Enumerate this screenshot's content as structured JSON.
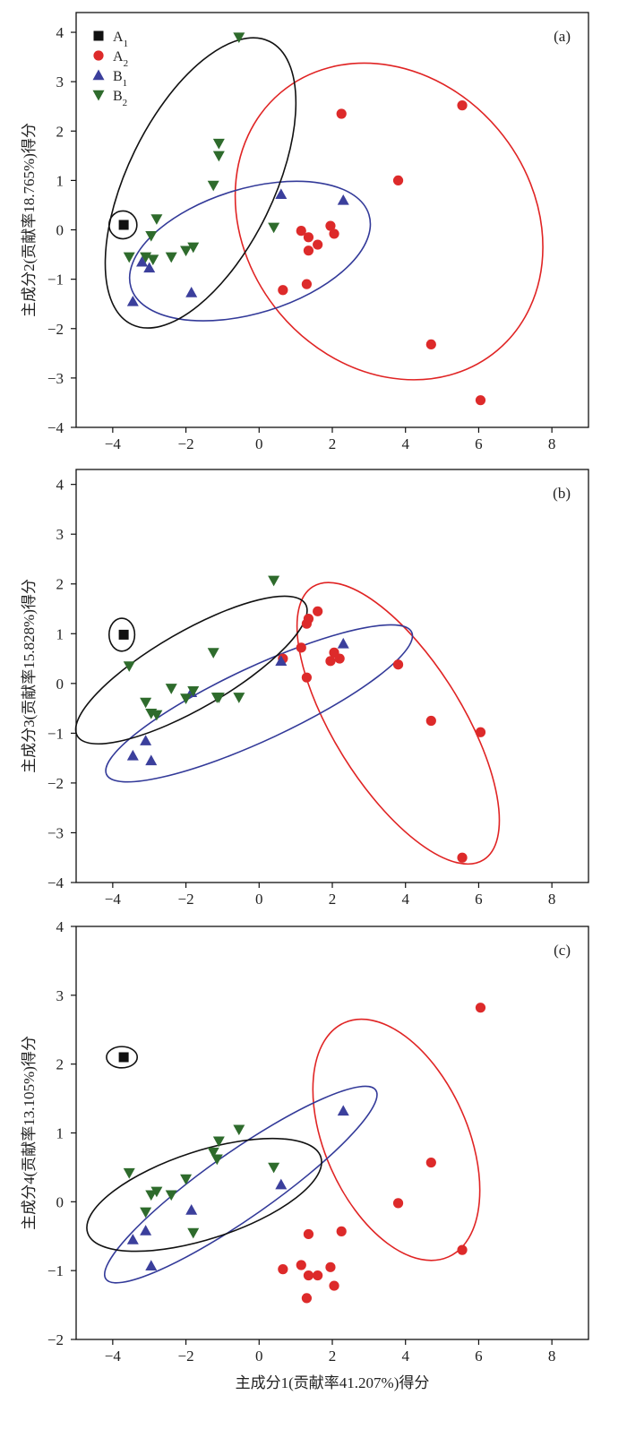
{
  "chart_data": [
    {
      "type": "scatter",
      "panel_label": "(a)",
      "xlabel": "",
      "ylabel": "主成分2(贡献率18.765%)得分",
      "xlim": [
        -5,
        9
      ],
      "ylim": [
        -4,
        4.4
      ],
      "xticks": [
        -4,
        -2,
        0,
        2,
        4,
        6,
        8
      ],
      "yticks": [
        -4,
        -3,
        -2,
        -1,
        0,
        1,
        2,
        3,
        4
      ],
      "legend": "top-left",
      "series": [
        {
          "name": "A1",
          "marker": "square",
          "color": "#111111",
          "points": [
            [
              -3.7,
              0.1
            ]
          ]
        },
        {
          "name": "A2",
          "marker": "circle",
          "color": "#dd2a2a",
          "points": [
            [
              2.25,
              2.35
            ],
            [
              5.55,
              2.52
            ],
            [
              3.8,
              1.0
            ],
            [
              1.15,
              -0.02
            ],
            [
              1.95,
              0.08
            ],
            [
              2.05,
              -0.08
            ],
            [
              1.35,
              -0.15
            ],
            [
              1.6,
              -0.3
            ],
            [
              1.35,
              -0.42
            ],
            [
              1.3,
              -1.1
            ],
            [
              0.65,
              -1.22
            ],
            [
              4.7,
              -2.32
            ],
            [
              6.05,
              -3.45
            ]
          ]
        },
        {
          "name": "B1",
          "marker": "triangle-up",
          "color": "#3b3f9c",
          "points": [
            [
              0.6,
              0.72
            ],
            [
              2.3,
              0.6
            ],
            [
              -3.2,
              -0.65
            ],
            [
              -3.0,
              -0.77
            ],
            [
              -1.85,
              -1.27
            ],
            [
              -3.45,
              -1.45
            ]
          ]
        },
        {
          "name": "B2",
          "marker": "triangle-down",
          "color": "#2e6b2c",
          "points": [
            [
              -0.55,
              3.9
            ],
            [
              -1.1,
              1.75
            ],
            [
              -1.1,
              1.5
            ],
            [
              -1.25,
              0.9
            ],
            [
              -2.8,
              0.22
            ],
            [
              -2.95,
              -0.12
            ],
            [
              0.4,
              0.05
            ],
            [
              -3.55,
              -0.55
            ],
            [
              -3.1,
              -0.55
            ],
            [
              -2.9,
              -0.6
            ],
            [
              -2.4,
              -0.55
            ],
            [
              -1.8,
              -0.35
            ],
            [
              -2.0,
              -0.42
            ]
          ]
        }
      ],
      "ellipses": [
        {
          "group": "A1",
          "color": "#111111",
          "cx": -3.72,
          "cy": 0.1,
          "rx": 0.38,
          "ry": 0.38,
          "angle": 90
        },
        {
          "group": "A2",
          "color": "#e02424",
          "cx": 3.55,
          "cy": 0.17,
          "rx": 4.6,
          "ry": 3.9,
          "angle": 130
        },
        {
          "group": "B1",
          "color": "#333a99",
          "cx": -0.25,
          "cy": -0.43,
          "rx": 3.4,
          "ry": 1.7,
          "angle": 17
        },
        {
          "group": "B2",
          "color": "#111111",
          "cx": -1.6,
          "cy": 0.95,
          "rx": 4.3,
          "ry": 2.0,
          "angle": 64
        }
      ]
    },
    {
      "type": "scatter",
      "panel_label": "(b)",
      "xlabel": "",
      "ylabel": "主成分3(贡献率15.828%)得分",
      "xlim": [
        -5,
        9
      ],
      "ylim": [
        -4,
        4.3
      ],
      "xticks": [
        -4,
        -2,
        0,
        2,
        4,
        6,
        8
      ],
      "yticks": [
        -4,
        -3,
        -2,
        -1,
        0,
        1,
        2,
        3,
        4
      ],
      "legend": "none",
      "series": [
        {
          "name": "A1",
          "marker": "square",
          "color": "#111111",
          "points": [
            [
              -3.7,
              0.98
            ]
          ]
        },
        {
          "name": "A2",
          "marker": "circle",
          "color": "#dd2a2a",
          "points": [
            [
              1.6,
              1.45
            ],
            [
              1.35,
              1.3
            ],
            [
              1.3,
              1.2
            ],
            [
              0.65,
              0.5
            ],
            [
              1.15,
              0.72
            ],
            [
              2.05,
              0.62
            ],
            [
              2.2,
              0.5
            ],
            [
              1.95,
              0.45
            ],
            [
              1.3,
              0.12
            ],
            [
              3.8,
              0.38
            ],
            [
              4.7,
              -0.75
            ],
            [
              6.05,
              -0.98
            ],
            [
              5.55,
              -3.5
            ]
          ]
        },
        {
          "name": "B1",
          "marker": "triangle-up",
          "color": "#3b3f9c",
          "points": [
            [
              2.3,
              0.8
            ],
            [
              0.6,
              0.45
            ],
            [
              -3.1,
              -1.15
            ],
            [
              -3.45,
              -1.45
            ],
            [
              -2.95,
              -1.55
            ],
            [
              -1.85,
              -0.18
            ]
          ]
        },
        {
          "name": "B2",
          "marker": "triangle-down",
          "color": "#2e6b2c",
          "points": [
            [
              0.4,
              2.07
            ],
            [
              -3.55,
              0.35
            ],
            [
              -1.25,
              0.62
            ],
            [
              -2.4,
              -0.1
            ],
            [
              -2.0,
              -0.3
            ],
            [
              -1.8,
              -0.15
            ],
            [
              -1.1,
              -0.28
            ],
            [
              -1.15,
              -0.28
            ],
            [
              -0.55,
              -0.28
            ],
            [
              -3.1,
              -0.38
            ],
            [
              -2.95,
              -0.6
            ],
            [
              -2.8,
              -0.63
            ]
          ]
        }
      ],
      "ellipses": [
        {
          "group": "A1",
          "color": "#111111",
          "cx": -3.75,
          "cy": 0.98,
          "rx": 0.45,
          "ry": 0.35,
          "angle": 90
        },
        {
          "group": "A2",
          "color": "#e02424",
          "cx": 3.8,
          "cy": -0.8,
          "rx": 4.4,
          "ry": 1.75,
          "angle": -58
        },
        {
          "group": "B1",
          "color": "#333a99",
          "cx": 0.0,
          "cy": -0.4,
          "rx": 4.6,
          "ry": 1.0,
          "angle": 25
        },
        {
          "group": "B2",
          "color": "#111111",
          "cx": -1.85,
          "cy": 0.27,
          "rx": 3.6,
          "ry": 1.05,
          "angle": 30
        }
      ]
    },
    {
      "type": "scatter",
      "panel_label": "(c)",
      "xlabel": "主成分1(贡献率41.207%)得分",
      "ylabel": "主成分4(贡献率13.105%)得分",
      "xlim": [
        -5,
        9
      ],
      "ylim": [
        -2,
        4
      ],
      "xticks": [
        -4,
        -2,
        0,
        2,
        4,
        6,
        8
      ],
      "yticks": [
        -2,
        -1,
        0,
        1,
        2,
        3,
        4
      ],
      "legend": "none",
      "series": [
        {
          "name": "A1",
          "marker": "square",
          "color": "#111111",
          "points": [
            [
              -3.7,
              2.1
            ]
          ]
        },
        {
          "name": "A2",
          "marker": "circle",
          "color": "#dd2a2a",
          "points": [
            [
              6.05,
              2.82
            ],
            [
              4.7,
              0.57
            ],
            [
              3.8,
              -0.02
            ],
            [
              2.25,
              -0.43
            ],
            [
              5.55,
              -0.7
            ],
            [
              1.35,
              -0.47
            ],
            [
              1.15,
              -0.92
            ],
            [
              0.65,
              -0.98
            ],
            [
              1.95,
              -0.95
            ],
            [
              1.35,
              -1.07
            ],
            [
              1.6,
              -1.07
            ],
            [
              2.05,
              -1.22
            ],
            [
              1.3,
              -1.4
            ]
          ]
        },
        {
          "name": "B1",
          "marker": "triangle-up",
          "color": "#3b3f9c",
          "points": [
            [
              2.3,
              1.32
            ],
            [
              0.6,
              0.25
            ],
            [
              -1.85,
              -0.12
            ],
            [
              -3.1,
              -0.42
            ],
            [
              -3.45,
              -0.55
            ],
            [
              -2.95,
              -0.93
            ]
          ]
        },
        {
          "name": "B2",
          "marker": "triangle-down",
          "color": "#2e6b2c",
          "points": [
            [
              -0.55,
              1.05
            ],
            [
              -1.1,
              0.88
            ],
            [
              -1.25,
              0.72
            ],
            [
              -1.15,
              0.62
            ],
            [
              0.4,
              0.5
            ],
            [
              -3.55,
              0.42
            ],
            [
              -2.0,
              0.33
            ],
            [
              -2.8,
              0.15
            ],
            [
              -2.95,
              0.1
            ],
            [
              -2.4,
              0.1
            ],
            [
              -3.1,
              -0.15
            ],
            [
              -1.8,
              -0.45
            ]
          ]
        }
      ],
      "ellipses": [
        {
          "group": "A1",
          "color": "#111111",
          "cx": -3.75,
          "cy": 2.1,
          "rx": 0.42,
          "ry": 0.29,
          "angle": 0
        },
        {
          "group": "A2",
          "color": "#e02424",
          "cx": 3.75,
          "cy": 0.9,
          "rx": 3.5,
          "ry": 1.95,
          "angle": -66
        },
        {
          "group": "B1",
          "color": "#333a99",
          "cx": -0.5,
          "cy": 0.25,
          "rx": 4.5,
          "ry": 0.9,
          "angle": 35
        },
        {
          "group": "B2",
          "color": "#111111",
          "cx": -1.5,
          "cy": 0.1,
          "rx": 3.35,
          "ry": 1.2,
          "angle": 18
        }
      ]
    }
  ]
}
